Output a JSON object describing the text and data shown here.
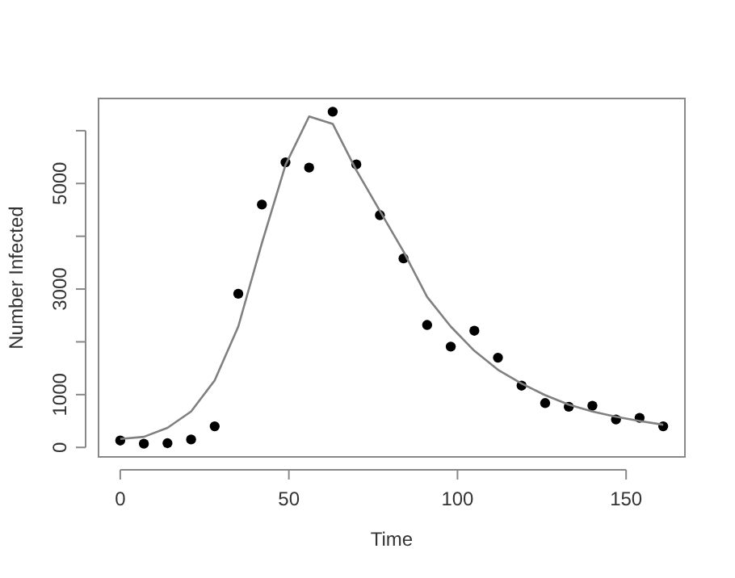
{
  "chart_data": {
    "type": "scatter",
    "xlabel": "Time",
    "ylabel": "Number Infected",
    "xlim": [
      -6.44,
      167.44
    ],
    "ylim": [
      -180,
      6610
    ],
    "xticks": [
      0,
      50,
      100,
      150
    ],
    "yticks": [
      0,
      1000,
      {
        "value": 2000,
        "label": null
      },
      3000,
      {
        "value": 4000,
        "label": null
      },
      5000,
      {
        "value": 6000,
        "label": null
      }
    ],
    "grid": false,
    "marker": "circle",
    "series": [
      {
        "color": "#000000",
        "x": [
          0,
          7,
          14,
          21,
          28,
          35,
          42,
          49,
          56,
          63,
          70,
          77,
          84,
          91,
          98,
          105,
          112,
          119,
          126,
          133,
          140,
          147,
          154,
          161
        ],
        "values": [
          130,
          70,
          80,
          150,
          400,
          2910,
          4600,
          5400,
          5300,
          6360,
          5360,
          4400,
          3580,
          2320,
          1910,
          2210,
          1700,
          1170,
          840,
          770,
          790,
          530,
          560,
          400
        ]
      },
      {
        "type": "line",
        "color": "#808080",
        "line_style": "solid",
        "marker": "none",
        "x": [
          0,
          7,
          14,
          21,
          28,
          35,
          42,
          49,
          56,
          63,
          70,
          77,
          84,
          91,
          98,
          105,
          112,
          119,
          126,
          133,
          140,
          147,
          154,
          161
        ],
        "values": [
          160,
          200,
          370,
          680,
          1270,
          2290,
          3870,
          5350,
          6270,
          6130,
          5250,
          4480,
          3710,
          2850,
          2290,
          1830,
          1470,
          1210,
          990,
          810,
          680,
          580,
          500,
          430
        ]
      }
    ]
  }
}
